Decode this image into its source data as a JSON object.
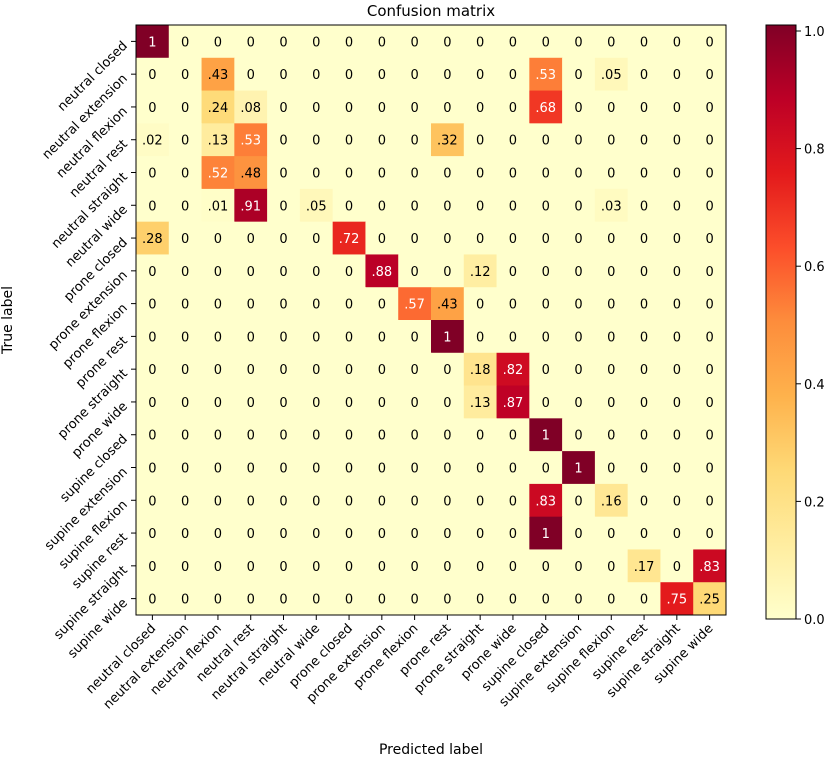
{
  "chart_data": {
    "type": "heatmap",
    "title": "Confusion matrix",
    "xlabel": "Predicted label",
    "ylabel": "True label",
    "labels": [
      "neutral closed",
      "neutral extension",
      "neutral flexion",
      "neutral rest",
      "neutral straight",
      "neutral wide",
      "prone closed",
      "prone extension",
      "prone flexion",
      "prone rest",
      "prone straight",
      "prone wide",
      "supine closed",
      "supine extension",
      "supine flexion",
      "supine rest",
      "supine straight",
      "supine wide"
    ],
    "cell_text": [
      [
        "1",
        "0",
        "0",
        "0",
        "0",
        "0",
        "0",
        "0",
        "0",
        "0",
        "0",
        "0",
        "0",
        "0",
        "0",
        "0",
        "0",
        "0"
      ],
      [
        "0",
        "0",
        ".43",
        "0",
        "0",
        "0",
        "0",
        "0",
        "0",
        "0",
        "0",
        "0",
        ".53",
        "0",
        ".05",
        "0",
        "0",
        "0"
      ],
      [
        "0",
        "0",
        ".24",
        ".08",
        "0",
        "0",
        "0",
        "0",
        "0",
        "0",
        "0",
        "0",
        ".68",
        "0",
        "0",
        "0",
        "0",
        "0"
      ],
      [
        ".02",
        "0",
        ".13",
        ".53",
        "0",
        "0",
        "0",
        "0",
        "0",
        ".32",
        "0",
        "0",
        "0",
        "0",
        "0",
        "0",
        "0",
        "0"
      ],
      [
        "0",
        "0",
        ".52",
        ".48",
        "0",
        "0",
        "0",
        "0",
        "0",
        "0",
        "0",
        "0",
        "0",
        "0",
        "0",
        "0",
        "0",
        "0"
      ],
      [
        "0",
        "0",
        ".01",
        ".91",
        "0",
        ".05",
        "0",
        "0",
        "0",
        "0",
        "0",
        "0",
        "0",
        "0",
        ".03",
        "0",
        "0",
        "0"
      ],
      [
        ".28",
        "0",
        "0",
        "0",
        "0",
        "0",
        ".72",
        "0",
        "0",
        "0",
        "0",
        "0",
        "0",
        "0",
        "0",
        "0",
        "0",
        "0"
      ],
      [
        "0",
        "0",
        "0",
        "0",
        "0",
        "0",
        "0",
        ".88",
        "0",
        "0",
        ".12",
        "0",
        "0",
        "0",
        "0",
        "0",
        "0",
        "0"
      ],
      [
        "0",
        "0",
        "0",
        "0",
        "0",
        "0",
        "0",
        "0",
        ".57",
        ".43",
        "0",
        "0",
        "0",
        "0",
        "0",
        "0",
        "0",
        "0"
      ],
      [
        "0",
        "0",
        "0",
        "0",
        "0",
        "0",
        "0",
        "0",
        "0",
        "1",
        "0",
        "0",
        "0",
        "0",
        "0",
        "0",
        "0",
        "0"
      ],
      [
        "0",
        "0",
        "0",
        "0",
        "0",
        "0",
        "0",
        "0",
        "0",
        "0",
        ".18",
        ".82",
        "0",
        "0",
        "0",
        "0",
        "0",
        "0"
      ],
      [
        "0",
        "0",
        "0",
        "0",
        "0",
        "0",
        "0",
        "0",
        "0",
        "0",
        ".13",
        ".87",
        "0",
        "0",
        "0",
        "0",
        "0",
        "0"
      ],
      [
        "0",
        "0",
        "0",
        "0",
        "0",
        "0",
        "0",
        "0",
        "0",
        "0",
        "0",
        "0",
        "1",
        "0",
        "0",
        "0",
        "0",
        "0"
      ],
      [
        "0",
        "0",
        "0",
        "0",
        "0",
        "0",
        "0",
        "0",
        "0",
        "0",
        "0",
        "0",
        "0",
        "1",
        "0",
        "0",
        "0",
        "0"
      ],
      [
        "0",
        "0",
        "0",
        "0",
        "0",
        "0",
        "0",
        "0",
        "0",
        "0",
        "0",
        "0",
        ".83",
        "0",
        ".16",
        "0",
        "0",
        "0"
      ],
      [
        "0",
        "0",
        "0",
        "0",
        "0",
        "0",
        "0",
        "0",
        "0",
        "0",
        "0",
        "0",
        "1",
        "0",
        "0",
        "0",
        "0",
        "0"
      ],
      [
        "0",
        "0",
        "0",
        "0",
        "0",
        "0",
        "0",
        "0",
        "0",
        "0",
        "0",
        "0",
        "0",
        "0",
        "0",
        ".17",
        "0",
        ".83"
      ],
      [
        "0",
        "0",
        "0",
        "0",
        "0",
        "0",
        "0",
        "0",
        "0",
        "0",
        "0",
        "0",
        "0",
        "0",
        "0",
        "0",
        ".75",
        ".25"
      ]
    ],
    "values": [
      [
        1,
        0,
        0,
        0,
        0,
        0,
        0,
        0,
        0,
        0,
        0,
        0,
        0,
        0,
        0,
        0,
        0,
        0
      ],
      [
        0,
        0,
        0.43,
        0,
        0,
        0,
        0,
        0,
        0,
        0,
        0,
        0,
        0.53,
        0,
        0.05,
        0,
        0,
        0
      ],
      [
        0,
        0,
        0.24,
        0.08,
        0,
        0,
        0,
        0,
        0,
        0,
        0,
        0,
        0.68,
        0,
        0,
        0,
        0,
        0
      ],
      [
        0.02,
        0,
        0.13,
        0.53,
        0,
        0,
        0,
        0,
        0,
        0.32,
        0,
        0,
        0,
        0,
        0,
        0,
        0,
        0
      ],
      [
        0,
        0,
        0.52,
        0.48,
        0,
        0,
        0,
        0,
        0,
        0,
        0,
        0,
        0,
        0,
        0,
        0,
        0,
        0
      ],
      [
        0,
        0,
        0.01,
        0.91,
        0,
        0.05,
        0,
        0,
        0,
        0,
        0,
        0,
        0,
        0,
        0.03,
        0,
        0,
        0
      ],
      [
        0.28,
        0,
        0,
        0,
        0,
        0,
        0.72,
        0,
        0,
        0,
        0,
        0,
        0,
        0,
        0,
        0,
        0,
        0
      ],
      [
        0,
        0,
        0,
        0,
        0,
        0,
        0,
        0.88,
        0,
        0,
        0.12,
        0,
        0,
        0,
        0,
        0,
        0,
        0
      ],
      [
        0,
        0,
        0,
        0,
        0,
        0,
        0,
        0,
        0.57,
        0.43,
        0,
        0,
        0,
        0,
        0,
        0,
        0,
        0
      ],
      [
        0,
        0,
        0,
        0,
        0,
        0,
        0,
        0,
        0,
        1,
        0,
        0,
        0,
        0,
        0,
        0,
        0,
        0
      ],
      [
        0,
        0,
        0,
        0,
        0,
        0,
        0,
        0,
        0,
        0,
        0.18,
        0.82,
        0,
        0,
        0,
        0,
        0,
        0
      ],
      [
        0,
        0,
        0,
        0,
        0,
        0,
        0,
        0,
        0,
        0,
        0.13,
        0.87,
        0,
        0,
        0,
        0,
        0,
        0
      ],
      [
        0,
        0,
        0,
        0,
        0,
        0,
        0,
        0,
        0,
        0,
        0,
        0,
        1,
        0,
        0,
        0,
        0,
        0
      ],
      [
        0,
        0,
        0,
        0,
        0,
        0,
        0,
        0,
        0,
        0,
        0,
        0,
        0,
        1,
        0,
        0,
        0,
        0
      ],
      [
        0,
        0,
        0,
        0,
        0,
        0,
        0,
        0,
        0,
        0,
        0,
        0,
        0.83,
        0,
        0.16,
        0,
        0,
        0
      ],
      [
        0,
        0,
        0,
        0,
        0,
        0,
        0,
        0,
        0,
        0,
        0,
        0,
        1,
        0,
        0,
        0,
        0,
        0
      ],
      [
        0,
        0,
        0,
        0,
        0,
        0,
        0,
        0,
        0,
        0,
        0,
        0,
        0,
        0,
        0,
        0.17,
        0,
        0.83
      ],
      [
        0,
        0,
        0,
        0,
        0,
        0,
        0,
        0,
        0,
        0,
        0,
        0,
        0,
        0,
        0,
        0,
        0.75,
        0.25
      ]
    ],
    "colorbar": {
      "range": [
        0.0,
        1.0
      ],
      "ticks": [
        0.0,
        0.2,
        0.4,
        0.6,
        0.8,
        1.0
      ],
      "tick_labels": [
        "0.0",
        "0.2",
        "0.4",
        "0.6",
        "0.8",
        "1.0"
      ],
      "colormap": "YlOrRd",
      "colormap_stops": [
        "#ffffcc",
        "#ffeda0",
        "#fed976",
        "#feb24c",
        "#fd8d3c",
        "#fc4e2a",
        "#e31a1c",
        "#bd0026",
        "#800026"
      ]
    },
    "text_color_dark": "#000000",
    "text_color_light": "#ffffff",
    "text_threshold": 0.5
  }
}
